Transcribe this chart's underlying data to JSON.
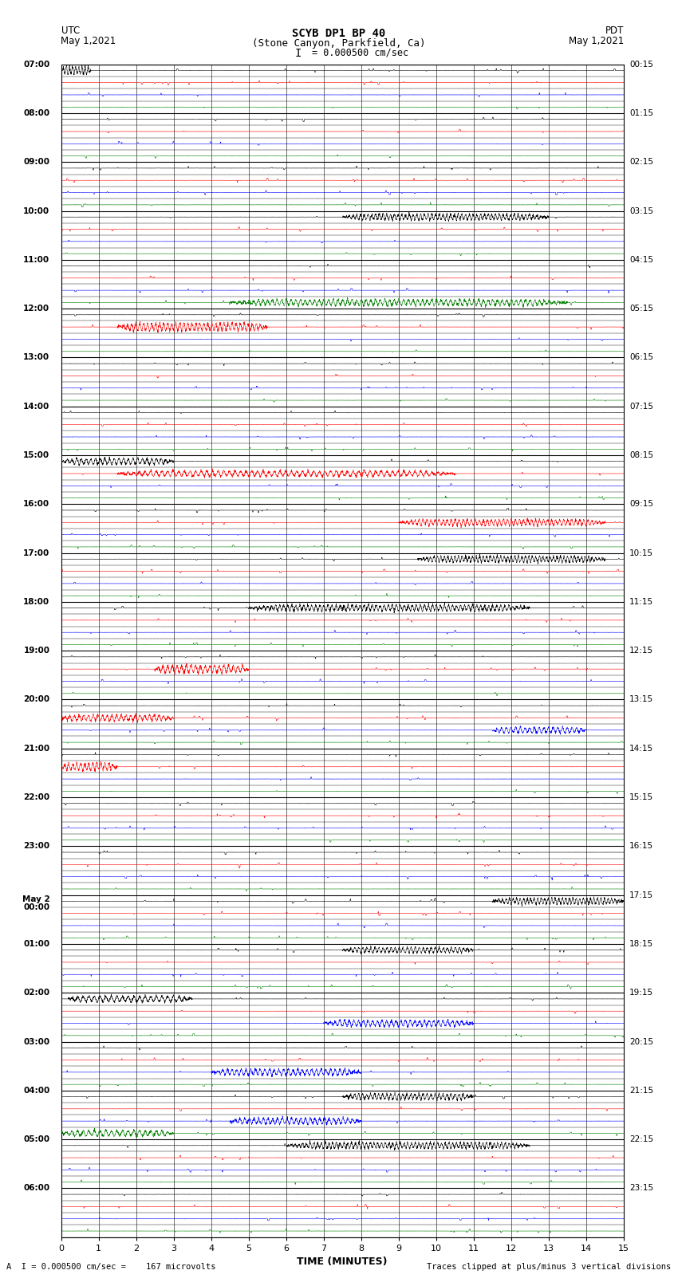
{
  "title_line1": "SCYB DP1 BP 40",
  "title_line2": "(Stone Canyon, Parkfield, Ca)",
  "scale_text": "I = 0.000500 cm/sec",
  "utc_label": "UTC",
  "utc_date": "May 1,2021",
  "pdt_label": "PDT",
  "pdt_date": "May 1,2021",
  "xlabel": "TIME (MINUTES)",
  "footer_left": "A  I = 0.000500 cm/sec =    167 microvolts",
  "footer_right": "Traces clipped at plus/minus 3 vertical divisions",
  "left_times": [
    "07:00",
    "",
    "",
    "",
    "08:00",
    "",
    "",
    "",
    "09:00",
    "",
    "",
    "",
    "10:00",
    "",
    "",
    "",
    "11:00",
    "",
    "",
    "",
    "12:00",
    "",
    "",
    "",
    "13:00",
    "",
    "",
    "",
    "14:00",
    "",
    "",
    "",
    "15:00",
    "",
    "",
    "",
    "16:00",
    "",
    "",
    "",
    "17:00",
    "",
    "",
    "",
    "18:00",
    "",
    "",
    "",
    "19:00",
    "",
    "",
    "",
    "20:00",
    "",
    "",
    "",
    "21:00",
    "",
    "",
    "",
    "22:00",
    "",
    "",
    "",
    "23:00",
    "",
    "",
    "",
    "May 2\n00:00",
    "",
    "",
    "",
    "01:00",
    "",
    "",
    "",
    "02:00",
    "",
    "",
    "",
    "03:00",
    "",
    "",
    "",
    "04:00",
    "",
    "",
    "",
    "05:00",
    "",
    "",
    "",
    "06:00",
    "",
    "",
    ""
  ],
  "right_times": [
    "00:15",
    "",
    "",
    "",
    "01:15",
    "",
    "",
    "",
    "02:15",
    "",
    "",
    "",
    "03:15",
    "",
    "",
    "",
    "04:15",
    "",
    "",
    "",
    "05:15",
    "",
    "",
    "",
    "06:15",
    "",
    "",
    "",
    "07:15",
    "",
    "",
    "",
    "08:15",
    "",
    "",
    "",
    "09:15",
    "",
    "",
    "",
    "10:15",
    "",
    "",
    "",
    "11:15",
    "",
    "",
    "",
    "12:15",
    "",
    "",
    "",
    "13:15",
    "",
    "",
    "",
    "14:15",
    "",
    "",
    "",
    "15:15",
    "",
    "",
    "",
    "16:15",
    "",
    "",
    "",
    "17:15",
    "",
    "",
    "",
    "18:15",
    "",
    "",
    "",
    "19:15",
    "",
    "",
    "",
    "20:15",
    "",
    "",
    "",
    "21:15",
    "",
    "",
    "",
    "22:15",
    "",
    "",
    "",
    "23:15",
    "",
    "",
    ""
  ],
  "n_rows": 96,
  "n_cols": 15,
  "bg_color": "#ffffff",
  "trace_colors": [
    "#000000",
    "#ff0000",
    "#0000ff",
    "#008000"
  ],
  "figsize": [
    8.5,
    16.13
  ],
  "dpi": 100
}
